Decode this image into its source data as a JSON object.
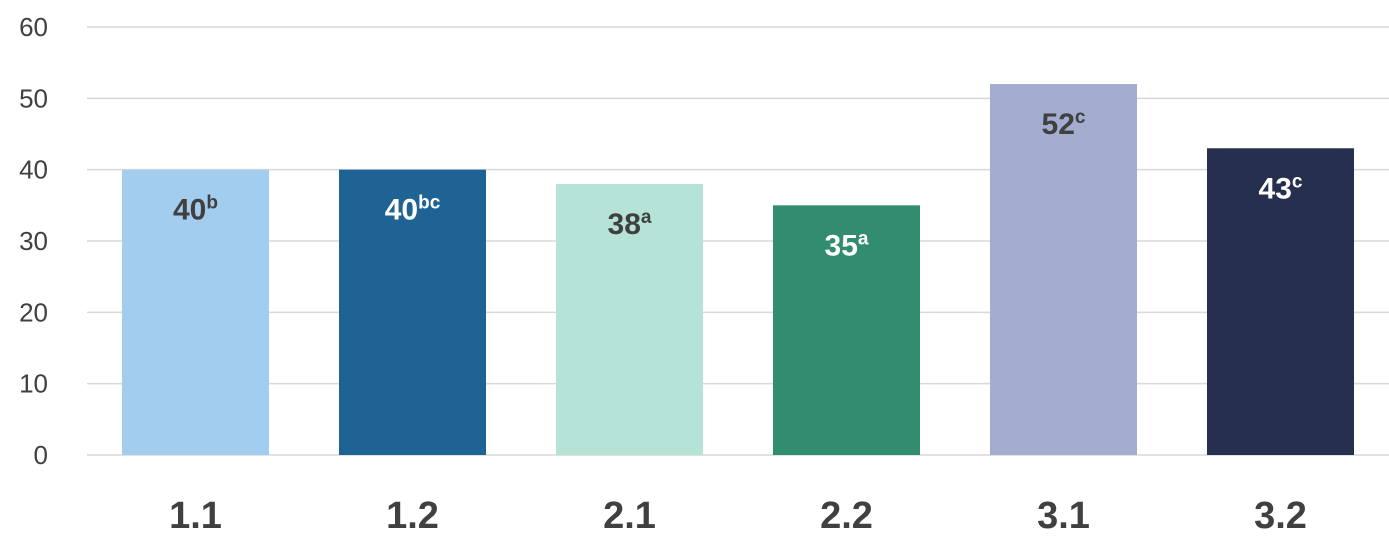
{
  "chart_data": {
    "type": "bar",
    "categories": [
      "1.1",
      "1.2",
      "2.1",
      "2.2",
      "3.1",
      "3.2"
    ],
    "values": [
      40,
      40,
      38,
      35,
      52,
      43
    ],
    "data_labels": [
      {
        "value": "40",
        "superscript": "b"
      },
      {
        "value": "40",
        "superscript": "bc"
      },
      {
        "value": "38",
        "superscript": "a"
      },
      {
        "value": "35",
        "superscript": "a"
      },
      {
        "value": "52",
        "superscript": "c"
      },
      {
        "value": "43",
        "superscript": "c"
      }
    ],
    "bar_colors": [
      "#a3cdee",
      "#1f6294",
      "#b5e3d7",
      "#328c70",
      "#a2adcf",
      "#262f4d"
    ],
    "label_colors": [
      "#404040",
      "#ffffff",
      "#404040",
      "#ffffff",
      "#404040",
      "#ffffff"
    ],
    "ylim": [
      0,
      60
    ],
    "yticks": [
      0,
      10,
      20,
      30,
      40,
      50,
      60
    ],
    "grid": true,
    "title": "",
    "xlabel": "",
    "ylabel": ""
  }
}
